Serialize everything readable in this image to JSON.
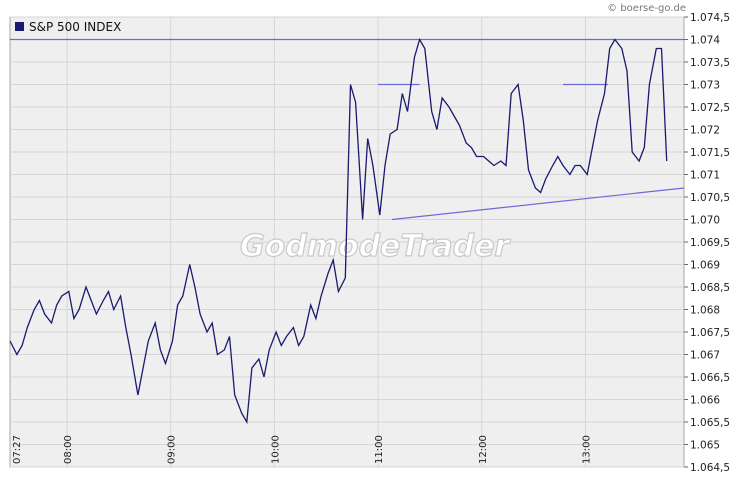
{
  "chart_data": {
    "type": "line",
    "title": "S&P 500 INDEX",
    "source": "© boerse-go.de",
    "watermark": "GodmodeTrader",
    "legend": {
      "entries": [
        "S&P 500 INDEX"
      ],
      "placement": "top-left"
    },
    "grid": true,
    "ylim": [
      1.0645,
      1.0745
    ],
    "y_ticks": [
      "1.064,5",
      "1.065",
      "1.065,5",
      "1.066",
      "1.066,5",
      "1.067",
      "1.067,5",
      "1.068",
      "1.068,5",
      "1.069",
      "1.069,5",
      "1.070",
      "1.070,5",
      "1.071",
      "1.071,5",
      "1.072",
      "1.072,5",
      "1.073",
      "1.073,5",
      "1.074",
      "1.074,5"
    ],
    "x_ticks": [
      "07:27",
      "08:00",
      "09:00",
      "10:00",
      "11:00",
      "12:00",
      "13:00"
    ],
    "series": [
      {
        "name": "S&P 500 INDEX",
        "color": "#1a1a6e",
        "x": [
          "07:27",
          "07:31",
          "07:34",
          "07:37",
          "07:41",
          "07:44",
          "07:47",
          "07:51",
          "07:54",
          "07:57",
          "08:01",
          "08:04",
          "08:07",
          "08:11",
          "08:14",
          "08:17",
          "08:21",
          "08:24",
          "08:27",
          "08:31",
          "08:34",
          "08:37",
          "08:41",
          "08:44",
          "08:47",
          "08:51",
          "08:54",
          "08:57",
          "09:01",
          "09:04",
          "09:07",
          "09:11",
          "09:14",
          "09:17",
          "09:21",
          "09:24",
          "09:27",
          "09:31",
          "09:34",
          "09:37",
          "09:41",
          "09:44",
          "09:47",
          "09:51",
          "09:54",
          "09:57",
          "10:01",
          "10:04",
          "10:07",
          "10:11",
          "10:14",
          "10:17",
          "10:21",
          "10:24",
          "10:27",
          "10:31",
          "10:34",
          "10:37",
          "10:41",
          "10:44",
          "10:47",
          "10:51",
          "10:54",
          "10:57",
          "11:01",
          "11:04",
          "11:07",
          "11:11",
          "11:14",
          "11:17",
          "11:21",
          "11:24",
          "11:27",
          "11:31",
          "11:34",
          "11:37",
          "11:41",
          "11:44",
          "11:47",
          "11:51",
          "11:54",
          "11:57",
          "12:01",
          "12:04",
          "12:07",
          "12:11",
          "12:14",
          "12:17",
          "12:21",
          "12:24",
          "12:27",
          "12:31",
          "12:34",
          "12:37",
          "12:41",
          "12:44",
          "12:47",
          "12:51",
          "12:54",
          "12:57",
          "13:01",
          "13:04",
          "13:07",
          "13:11",
          "13:14",
          "13:17",
          "13:21",
          "13:24",
          "13:27",
          "13:31",
          "13:34",
          "13:37",
          "13:41",
          "13:44",
          "13:47"
        ],
        "y": [
          1.0673,
          1.067,
          1.0672,
          1.0676,
          1.068,
          1.0682,
          1.0679,
          1.0677,
          1.0681,
          1.0683,
          1.0684,
          1.0678,
          1.068,
          1.0685,
          1.0682,
          1.0679,
          1.0682,
          1.0684,
          1.068,
          1.0683,
          1.0676,
          1.067,
          1.0661,
          1.0667,
          1.0673,
          1.0677,
          1.0671,
          1.0668,
          1.0673,
          1.0681,
          1.0683,
          1.069,
          1.0685,
          1.0679,
          1.0675,
          1.0677,
          1.067,
          1.0671,
          1.0674,
          1.0661,
          1.0657,
          1.0655,
          1.0667,
          1.0669,
          1.0665,
          1.0671,
          1.0675,
          1.0672,
          1.0674,
          1.0676,
          1.0672,
          1.0674,
          1.0681,
          1.0678,
          1.0683,
          1.0688,
          1.0691,
          1.0684,
          1.0687,
          1.073,
          1.0726,
          1.07,
          1.0718,
          1.0712,
          1.0701,
          1.0712,
          1.0719,
          1.072,
          1.0728,
          1.0724,
          1.0736,
          1.074,
          1.0738,
          1.0724,
          1.072,
          1.0727,
          1.0725,
          1.0723,
          1.0721,
          1.0717,
          1.0716,
          1.0714,
          1.0714,
          1.0713,
          1.0712,
          1.0713,
          1.0712,
          1.0728,
          1.073,
          1.0722,
          1.0711,
          1.0707,
          1.0706,
          1.0709,
          1.0712,
          1.0714,
          1.0712,
          1.071,
          1.0712,
          1.0712,
          1.071,
          1.0716,
          1.0722,
          1.0728,
          1.0738,
          1.074,
          1.0738,
          1.0733,
          1.0715,
          1.0713,
          1.0716,
          1.073,
          1.0738,
          1.0738,
          1.0713
        ]
      }
    ],
    "annotations": [
      {
        "type": "horizontal-line",
        "y": 1.074,
        "x": [
          "07:27",
          "13:57"
        ],
        "color": "#6b6bd8"
      },
      {
        "type": "trendline",
        "x": [
          "11:08",
          "13:57"
        ],
        "y": [
          1.07,
          1.0707
        ],
        "color": "#6b6bd8"
      },
      {
        "type": "segment",
        "x": [
          "11:00",
          "11:24"
        ],
        "y": [
          1.073,
          1.073
        ],
        "color": "#6b6bd8"
      },
      {
        "type": "segment",
        "x": [
          "12:47",
          "13:13"
        ],
        "y": [
          1.073,
          1.073
        ],
        "color": "#6b6bd8"
      }
    ]
  }
}
